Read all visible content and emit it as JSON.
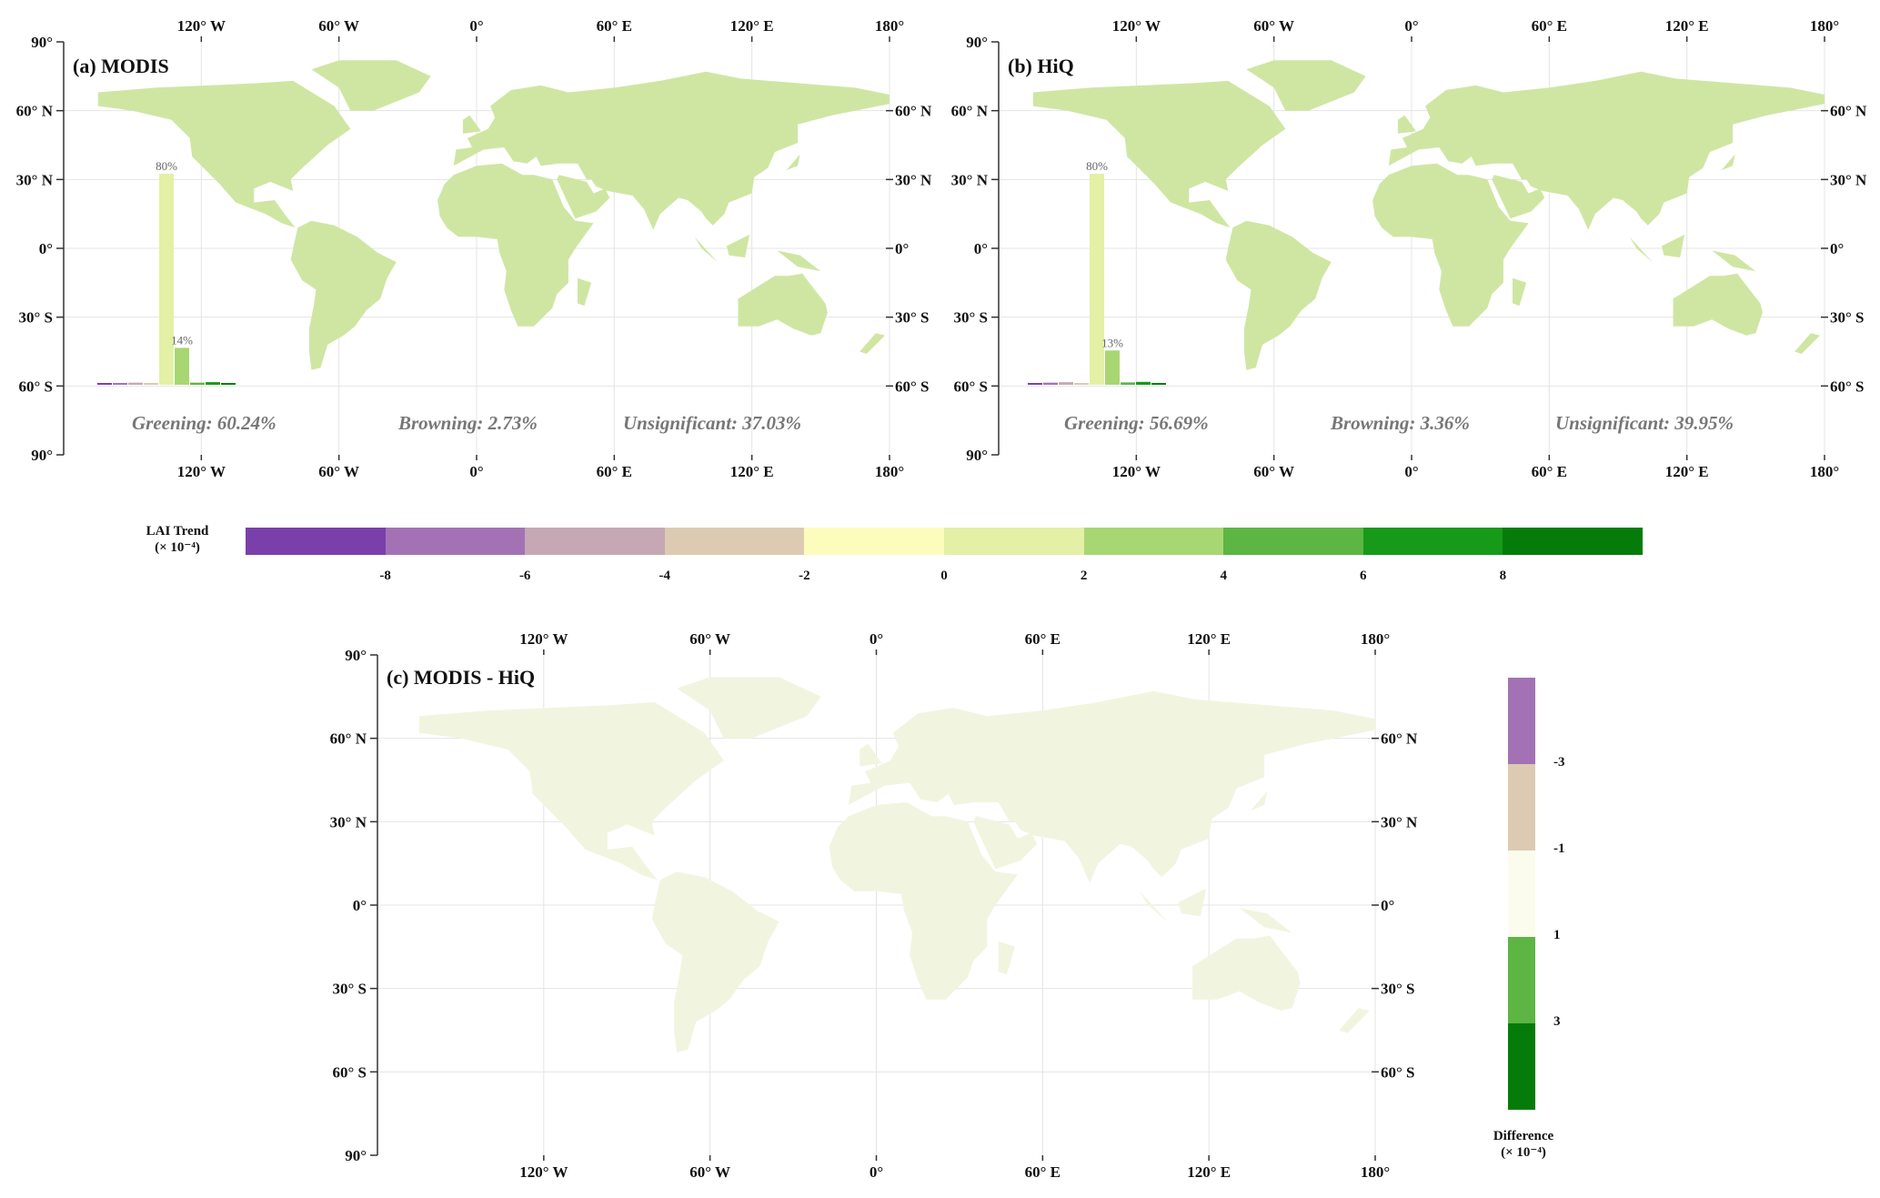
{
  "map_ticks": {
    "lon": [
      "120° W",
      "60° W",
      "0°",
      "60° E",
      "120° E",
      "180°"
    ],
    "lat_left": [
      "90°",
      "60° N",
      "30° N",
      "0°",
      "30° S",
      "60° S",
      "90°"
    ],
    "lat_right": [
      "60° N",
      "30° N",
      "0°",
      "30° S",
      "60° S"
    ]
  },
  "panels": [
    {
      "title": "(a) MODIS",
      "stats": [
        "Greening: 60.24%",
        "Browning: 2.73%",
        "Unsignificant: 37.03%"
      ],
      "hist_labels": [
        "80%",
        "14%"
      ],
      "hist_values": [
        0.5,
        0.5,
        0.8,
        0.2,
        80,
        14,
        0.8,
        1.0,
        0.4
      ],
      "land_color": "#cfe6a3"
    },
    {
      "title": "(b) HiQ",
      "stats": [
        "Greening: 56.69%",
        "Browning: 3.36%",
        "Unsignificant: 39.95%"
      ],
      "hist_labels": [
        "80%",
        "13%"
      ],
      "hist_values": [
        0.6,
        0.8,
        1.0,
        0.4,
        80,
        13,
        0.9,
        1.1,
        0.4
      ],
      "land_color": "#cfe6a3"
    },
    {
      "title": "(c) MODIS - HiQ",
      "land_color": "#f1f5e0"
    }
  ],
  "lai_legend": {
    "title_line1": "LAI Trend",
    "title_line2": "(× 10⁻⁴)",
    "colors": [
      "#7b3fab",
      "#a372b5",
      "#c5a8b4",
      "#dccbb2",
      "#fcfdbc",
      "#e3f0a6",
      "#a8d672",
      "#5db544",
      "#17991a",
      "#057c0a"
    ],
    "labels": [
      "-8",
      "-6",
      "-4",
      "-2",
      "0",
      "2",
      "4",
      "6",
      "8"
    ]
  },
  "diff_legend": {
    "title_line1": "Difference",
    "title_line2": "(× 10⁻⁴)",
    "colors": [
      "#a372b5",
      "#dccbb2",
      "#fbfcee",
      "#5db544",
      "#057c0a"
    ],
    "labels": [
      "-3",
      "-1",
      "1",
      "3"
    ]
  }
}
